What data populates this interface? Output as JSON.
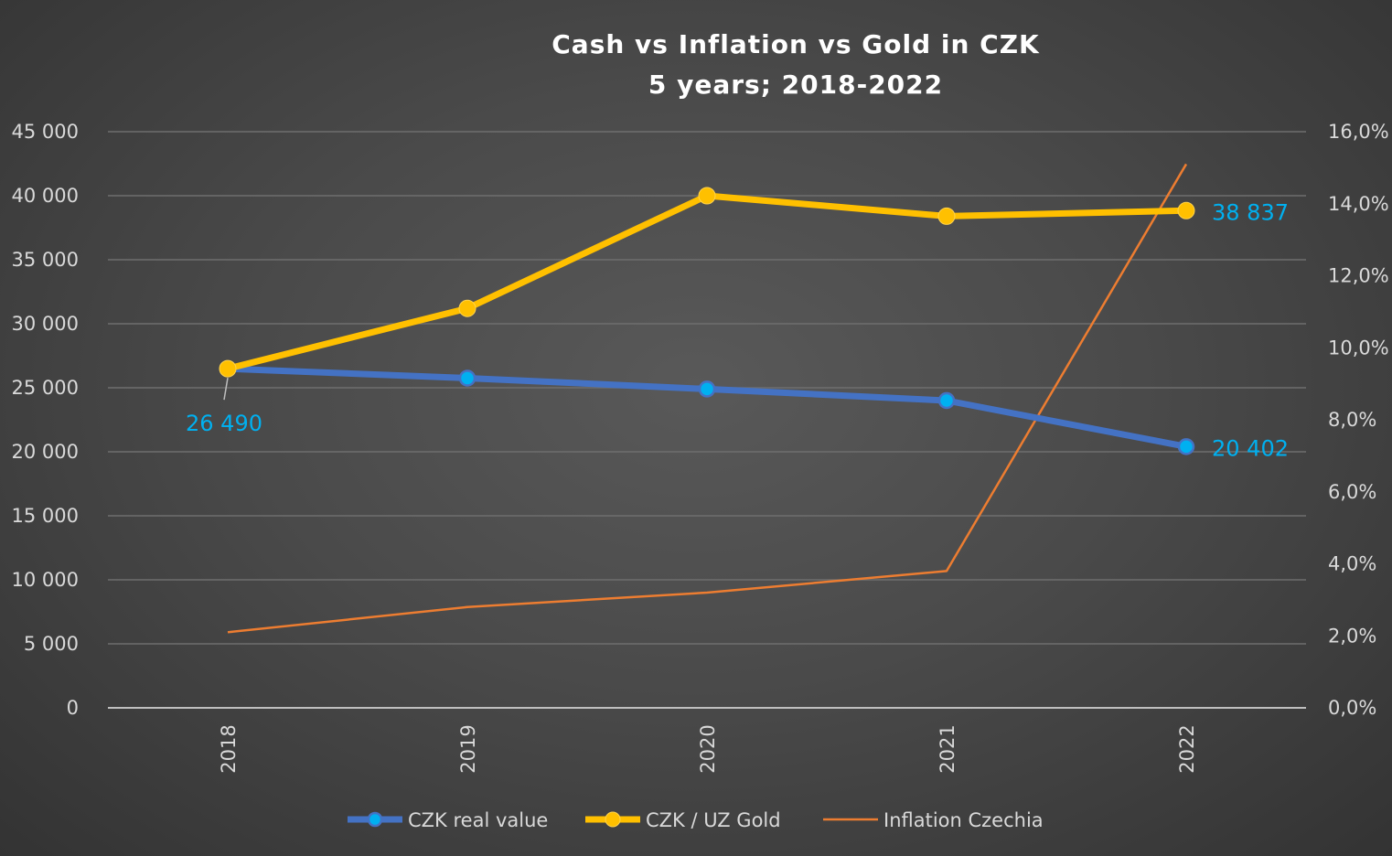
{
  "chart_data": {
    "type": "line",
    "title": "Cash vs Inflation vs Gold in CZK",
    "subtitle": "5 years; 2018-2022",
    "categories": [
      "2018",
      "2019",
      "2020",
      "2021",
      "2022"
    ],
    "y_left": {
      "ylim": [
        0,
        45000
      ],
      "ticks": [
        0,
        5000,
        10000,
        15000,
        20000,
        25000,
        30000,
        35000,
        40000,
        45000
      ],
      "tick_labels": [
        "0",
        "5 000",
        "10 000",
        "15 000",
        "20 000",
        "25 000",
        "30 000",
        "35 000",
        "40 000",
        "45 000"
      ]
    },
    "y_right": {
      "ylim": [
        0,
        16
      ],
      "ticks": [
        0,
        2,
        4,
        6,
        8,
        10,
        12,
        14,
        16
      ],
      "tick_labels": [
        "0,0%",
        "2,0%",
        "4,0%",
        "6,0%",
        "8,0%",
        "10,0%",
        "12,0%",
        "14,0%",
        "16,0%"
      ]
    },
    "grid": true,
    "legend_position": "bottom",
    "series": [
      {
        "name": "CZK real value",
        "axis": "left",
        "color": "#4472c4",
        "marker_color": "#00b0f0",
        "values": [
          26490,
          25750,
          24900,
          24000,
          20402
        ]
      },
      {
        "name": "CZK / UZ Gold",
        "axis": "left",
        "color": "#ffc000",
        "marker_color": "#ffc000",
        "values": [
          26490,
          31200,
          40000,
          38400,
          38837
        ]
      },
      {
        "name": "Inflation Czechia",
        "axis": "right",
        "color": "#ed7d31",
        "values": [
          2.1,
          2.8,
          3.2,
          3.8,
          15.1
        ]
      }
    ],
    "data_labels": [
      {
        "text": "26 490",
        "series": 0,
        "point": 0,
        "color": "#00b0f0"
      },
      {
        "text": "20 402",
        "series": 0,
        "point": 4,
        "color": "#00b0f0"
      },
      {
        "text": "38 837",
        "series": 1,
        "point": 4,
        "color": "#00b0f0"
      }
    ]
  }
}
